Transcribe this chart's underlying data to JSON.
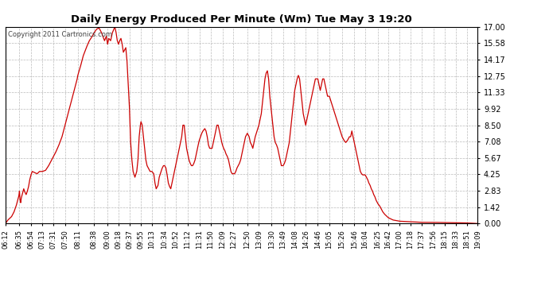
{
  "title": "Daily Energy Produced Per Minute (Wm) Tue May 3 19:20",
  "copyright": "Copyright 2011 Cartronics.com",
  "line_color": "#cc0000",
  "bg_color": "#ffffff",
  "plot_bg_color": "#ffffff",
  "grid_color": "#bbbbbb",
  "ylim": [
    0.0,
    17.0
  ],
  "yticks": [
    0.0,
    1.42,
    2.83,
    4.25,
    5.67,
    7.08,
    8.5,
    9.92,
    11.33,
    12.75,
    14.17,
    15.58,
    17.0
  ],
  "xtick_labels": [
    "06:12",
    "06:35",
    "06:54",
    "07:13",
    "07:31",
    "07:50",
    "08:11",
    "08:38",
    "09:00",
    "09:18",
    "09:37",
    "09:55",
    "10:13",
    "10:34",
    "10:52",
    "11:12",
    "11:31",
    "11:50",
    "12:09",
    "12:27",
    "12:50",
    "13:09",
    "13:30",
    "13:49",
    "14:08",
    "14:26",
    "14:46",
    "15:05",
    "15:26",
    "15:46",
    "16:04",
    "16:25",
    "16:42",
    "17:00",
    "17:18",
    "17:37",
    "17:56",
    "18:15",
    "18:33",
    "18:51",
    "19:09"
  ]
}
